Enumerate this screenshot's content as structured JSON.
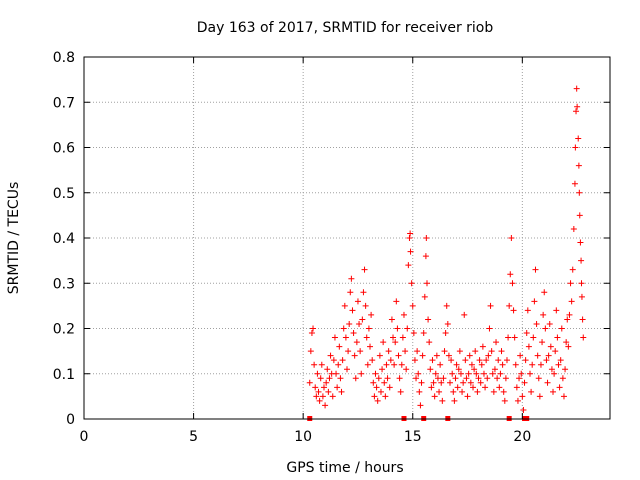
{
  "chart_data": {
    "type": "scatter",
    "title": "Day 163 of 2017, SRMTID for receiver riob",
    "xlabel": "GPS time / hours",
    "ylabel": "SRMTID / TECUs",
    "xlim": [
      0,
      24
    ],
    "ylim": [
      0,
      0.8
    ],
    "xticks": [
      0,
      5,
      10,
      15,
      20
    ],
    "yticks": [
      0,
      0.1,
      0.2,
      0.3,
      0.4,
      0.5,
      0.6,
      0.7,
      0.8
    ],
    "xtick_labels": [
      "0",
      "5",
      "10",
      "15",
      "20"
    ],
    "ytick_labels": [
      "0",
      "0.1",
      "0.2",
      "0.3",
      "0.4",
      "0.5",
      "0.6",
      "0.7",
      "0.8"
    ],
    "grid": true,
    "marker": "+",
    "color": "#ff0000",
    "series": [
      {
        "name": "SRMTID",
        "points": [
          [
            10.3,
            0.08
          ],
          [
            10.35,
            0.15
          ],
          [
            10.4,
            0.19
          ],
          [
            10.45,
            0.2
          ],
          [
            10.5,
            0.12
          ],
          [
            10.55,
            0.07
          ],
          [
            10.6,
            0.05
          ],
          [
            10.65,
            0.1
          ],
          [
            10.7,
            0.06
          ],
          [
            10.75,
            0.04
          ],
          [
            10.8,
            0.09
          ],
          [
            10.85,
            0.12
          ],
          [
            10.9,
            0.05
          ],
          [
            10.95,
            0.07
          ],
          [
            11.0,
            0.03
          ],
          [
            11.05,
            0.08
          ],
          [
            11.1,
            0.11
          ],
          [
            11.15,
            0.06
          ],
          [
            11.2,
            0.09
          ],
          [
            11.25,
            0.14
          ],
          [
            11.3,
            0.1
          ],
          [
            11.35,
            0.05
          ],
          [
            11.4,
            0.13
          ],
          [
            11.45,
            0.18
          ],
          [
            11.5,
            0.1
          ],
          [
            11.55,
            0.07
          ],
          [
            11.6,
            0.12
          ],
          [
            11.65,
            0.16
          ],
          [
            11.7,
            0.09
          ],
          [
            11.75,
            0.06
          ],
          [
            11.8,
            0.13
          ],
          [
            11.85,
            0.2
          ],
          [
            11.9,
            0.25
          ],
          [
            11.95,
            0.18
          ],
          [
            12.0,
            0.11
          ],
          [
            12.05,
            0.15
          ],
          [
            12.1,
            0.21
          ],
          [
            12.15,
            0.28
          ],
          [
            12.2,
            0.31
          ],
          [
            12.25,
            0.24
          ],
          [
            12.3,
            0.19
          ],
          [
            12.35,
            0.14
          ],
          [
            12.4,
            0.09
          ],
          [
            12.45,
            0.17
          ],
          [
            12.5,
            0.26
          ],
          [
            12.55,
            0.21
          ],
          [
            12.6,
            0.15
          ],
          [
            12.65,
            0.1
          ],
          [
            12.7,
            0.22
          ],
          [
            12.75,
            0.28
          ],
          [
            12.8,
            0.33
          ],
          [
            12.85,
            0.25
          ],
          [
            12.9,
            0.18
          ],
          [
            12.95,
            0.12
          ],
          [
            13.0,
            0.2
          ],
          [
            13.05,
            0.16
          ],
          [
            13.1,
            0.23
          ],
          [
            13.15,
            0.13
          ],
          [
            13.2,
            0.08
          ],
          [
            13.25,
            0.05
          ],
          [
            13.3,
            0.1
          ],
          [
            13.35,
            0.07
          ],
          [
            13.4,
            0.04
          ],
          [
            13.45,
            0.09
          ],
          [
            13.5,
            0.14
          ],
          [
            13.55,
            0.06
          ],
          [
            13.6,
            0.11
          ],
          [
            13.65,
            0.17
          ],
          [
            13.7,
            0.08
          ],
          [
            13.75,
            0.05
          ],
          [
            13.8,
            0.12
          ],
          [
            13.85,
            0.09
          ],
          [
            13.9,
            0.15
          ],
          [
            13.95,
            0.07
          ],
          [
            14.0,
            0.13
          ],
          [
            14.05,
            0.22
          ],
          [
            14.1,
            0.18
          ],
          [
            14.15,
            0.12
          ],
          [
            14.2,
            0.17
          ],
          [
            14.25,
            0.26
          ],
          [
            14.3,
            0.2
          ],
          [
            14.35,
            0.14
          ],
          [
            14.4,
            0.09
          ],
          [
            14.45,
            0.06
          ],
          [
            14.5,
            0.12
          ],
          [
            14.55,
            0.18
          ],
          [
            14.6,
            0.23
          ],
          [
            14.65,
            0.15
          ],
          [
            14.7,
            0.11
          ],
          [
            14.75,
            0.2
          ],
          [
            14.8,
            0.34
          ],
          [
            14.85,
            0.4
          ],
          [
            14.88,
            0.41
          ],
          [
            14.9,
            0.37
          ],
          [
            14.95,
            0.3
          ],
          [
            15.0,
            0.25
          ],
          [
            15.05,
            0.19
          ],
          [
            15.1,
            0.13
          ],
          [
            15.15,
            0.09
          ],
          [
            15.2,
            0.15
          ],
          [
            15.25,
            0.1
          ],
          [
            15.3,
            0.06
          ],
          [
            15.35,
            0.03
          ],
          [
            15.4,
            0.08
          ],
          [
            15.45,
            0.14
          ],
          [
            15.5,
            0.19
          ],
          [
            15.55,
            0.27
          ],
          [
            15.6,
            0.36
          ],
          [
            15.62,
            0.4
          ],
          [
            15.65,
            0.3
          ],
          [
            15.7,
            0.22
          ],
          [
            15.75,
            0.17
          ],
          [
            15.8,
            0.11
          ],
          [
            15.85,
            0.07
          ],
          [
            15.9,
            0.13
          ],
          [
            15.95,
            0.08
          ],
          [
            16.0,
            0.05
          ],
          [
            16.05,
            0.1
          ],
          [
            16.1,
            0.14
          ],
          [
            16.15,
            0.09
          ],
          [
            16.2,
            0.06
          ],
          [
            16.25,
            0.12
          ],
          [
            16.3,
            0.08
          ],
          [
            16.35,
            0.04
          ],
          [
            16.4,
            0.09
          ],
          [
            16.45,
            0.15
          ],
          [
            16.5,
            0.19
          ],
          [
            16.55,
            0.25
          ],
          [
            16.6,
            0.21
          ],
          [
            16.65,
            0.14
          ],
          [
            16.7,
            0.08
          ],
          [
            16.75,
            0.13
          ],
          [
            16.8,
            0.1
          ],
          [
            16.85,
            0.06
          ],
          [
            16.9,
            0.04
          ],
          [
            16.95,
            0.09
          ],
          [
            17.0,
            0.12
          ],
          [
            17.05,
            0.07
          ],
          [
            17.1,
            0.11
          ],
          [
            17.15,
            0.15
          ],
          [
            17.2,
            0.1
          ],
          [
            17.25,
            0.06
          ],
          [
            17.3,
            0.08
          ],
          [
            17.35,
            0.23
          ],
          [
            17.4,
            0.13
          ],
          [
            17.45,
            0.09
          ],
          [
            17.5,
            0.05
          ],
          [
            17.55,
            0.1
          ],
          [
            17.6,
            0.14
          ],
          [
            17.65,
            0.08
          ],
          [
            17.7,
            0.12
          ],
          [
            17.75,
            0.07
          ],
          [
            17.8,
            0.11
          ],
          [
            17.85,
            0.15
          ],
          [
            17.9,
            0.1
          ],
          [
            17.95,
            0.06
          ],
          [
            18.0,
            0.09
          ],
          [
            18.05,
            0.13
          ],
          [
            18.1,
            0.08
          ],
          [
            18.15,
            0.12
          ],
          [
            18.2,
            0.16
          ],
          [
            18.25,
            0.1
          ],
          [
            18.3,
            0.07
          ],
          [
            18.35,
            0.13
          ],
          [
            18.4,
            0.09
          ],
          [
            18.45,
            0.14
          ],
          [
            18.5,
            0.2
          ],
          [
            18.55,
            0.25
          ],
          [
            18.6,
            0.15
          ],
          [
            18.65,
            0.1
          ],
          [
            18.7,
            0.06
          ],
          [
            18.75,
            0.11
          ],
          [
            18.8,
            0.17
          ],
          [
            18.85,
            0.09
          ],
          [
            18.9,
            0.13
          ],
          [
            18.95,
            0.07
          ],
          [
            19.0,
            0.1
          ],
          [
            19.05,
            0.15
          ],
          [
            19.1,
            0.12
          ],
          [
            19.15,
            0.06
          ],
          [
            19.2,
            0.04
          ],
          [
            19.25,
            0.09
          ],
          [
            19.3,
            0.13
          ],
          [
            19.35,
            0.18
          ],
          [
            19.4,
            0.25
          ],
          [
            19.45,
            0.32
          ],
          [
            19.5,
            0.4
          ],
          [
            19.55,
            0.3
          ],
          [
            19.6,
            0.24
          ],
          [
            19.65,
            0.18
          ],
          [
            19.7,
            0.12
          ],
          [
            19.75,
            0.07
          ],
          [
            19.8,
            0.04
          ],
          [
            19.85,
            0.09
          ],
          [
            19.9,
            0.14
          ],
          [
            19.95,
            0.1
          ],
          [
            20.0,
            0.05
          ],
          [
            20.05,
            0.02
          ],
          [
            20.1,
            0.08
          ],
          [
            20.15,
            0.13
          ],
          [
            20.2,
            0.19
          ],
          [
            20.25,
            0.24
          ],
          [
            20.3,
            0.16
          ],
          [
            20.35,
            0.1
          ],
          [
            20.4,
            0.06
          ],
          [
            20.45,
            0.12
          ],
          [
            20.5,
            0.18
          ],
          [
            20.55,
            0.26
          ],
          [
            20.6,
            0.33
          ],
          [
            20.65,
            0.21
          ],
          [
            20.7,
            0.14
          ],
          [
            20.75,
            0.09
          ],
          [
            20.8,
            0.05
          ],
          [
            20.85,
            0.12
          ],
          [
            20.9,
            0.17
          ],
          [
            20.95,
            0.23
          ],
          [
            21.0,
            0.28
          ],
          [
            21.05,
            0.2
          ],
          [
            21.1,
            0.13
          ],
          [
            21.15,
            0.08
          ],
          [
            21.2,
            0.14
          ],
          [
            21.25,
            0.21
          ],
          [
            21.3,
            0.16
          ],
          [
            21.35,
            0.11
          ],
          [
            21.4,
            0.06
          ],
          [
            21.45,
            0.1
          ],
          [
            21.5,
            0.15
          ],
          [
            21.55,
            0.24
          ],
          [
            21.6,
            0.18
          ],
          [
            21.65,
            0.12
          ],
          [
            21.7,
            0.07
          ],
          [
            21.75,
            0.13
          ],
          [
            21.8,
            0.2
          ],
          [
            21.85,
            0.09
          ],
          [
            21.9,
            0.05
          ],
          [
            21.95,
            0.11
          ],
          [
            22.0,
            0.17
          ],
          [
            22.05,
            0.22
          ],
          [
            22.1,
            0.16
          ],
          [
            22.15,
            0.23
          ],
          [
            22.2,
            0.3
          ],
          [
            22.25,
            0.26
          ],
          [
            22.3,
            0.33
          ],
          [
            22.35,
            0.42
          ],
          [
            22.4,
            0.52
          ],
          [
            22.42,
            0.6
          ],
          [
            22.45,
            0.68
          ],
          [
            22.48,
            0.73
          ],
          [
            22.5,
            0.69
          ],
          [
            22.55,
            0.62
          ],
          [
            22.58,
            0.56
          ],
          [
            22.6,
            0.5
          ],
          [
            22.62,
            0.45
          ],
          [
            22.65,
            0.39
          ],
          [
            22.68,
            0.35
          ],
          [
            22.7,
            0.3
          ],
          [
            22.72,
            0.27
          ],
          [
            22.75,
            0.22
          ],
          [
            22.78,
            0.18
          ]
        ]
      }
    ],
    "gaps": [
      10.3,
      14.6,
      15.5,
      16.6,
      19.4,
      20.1,
      20.2
    ]
  }
}
